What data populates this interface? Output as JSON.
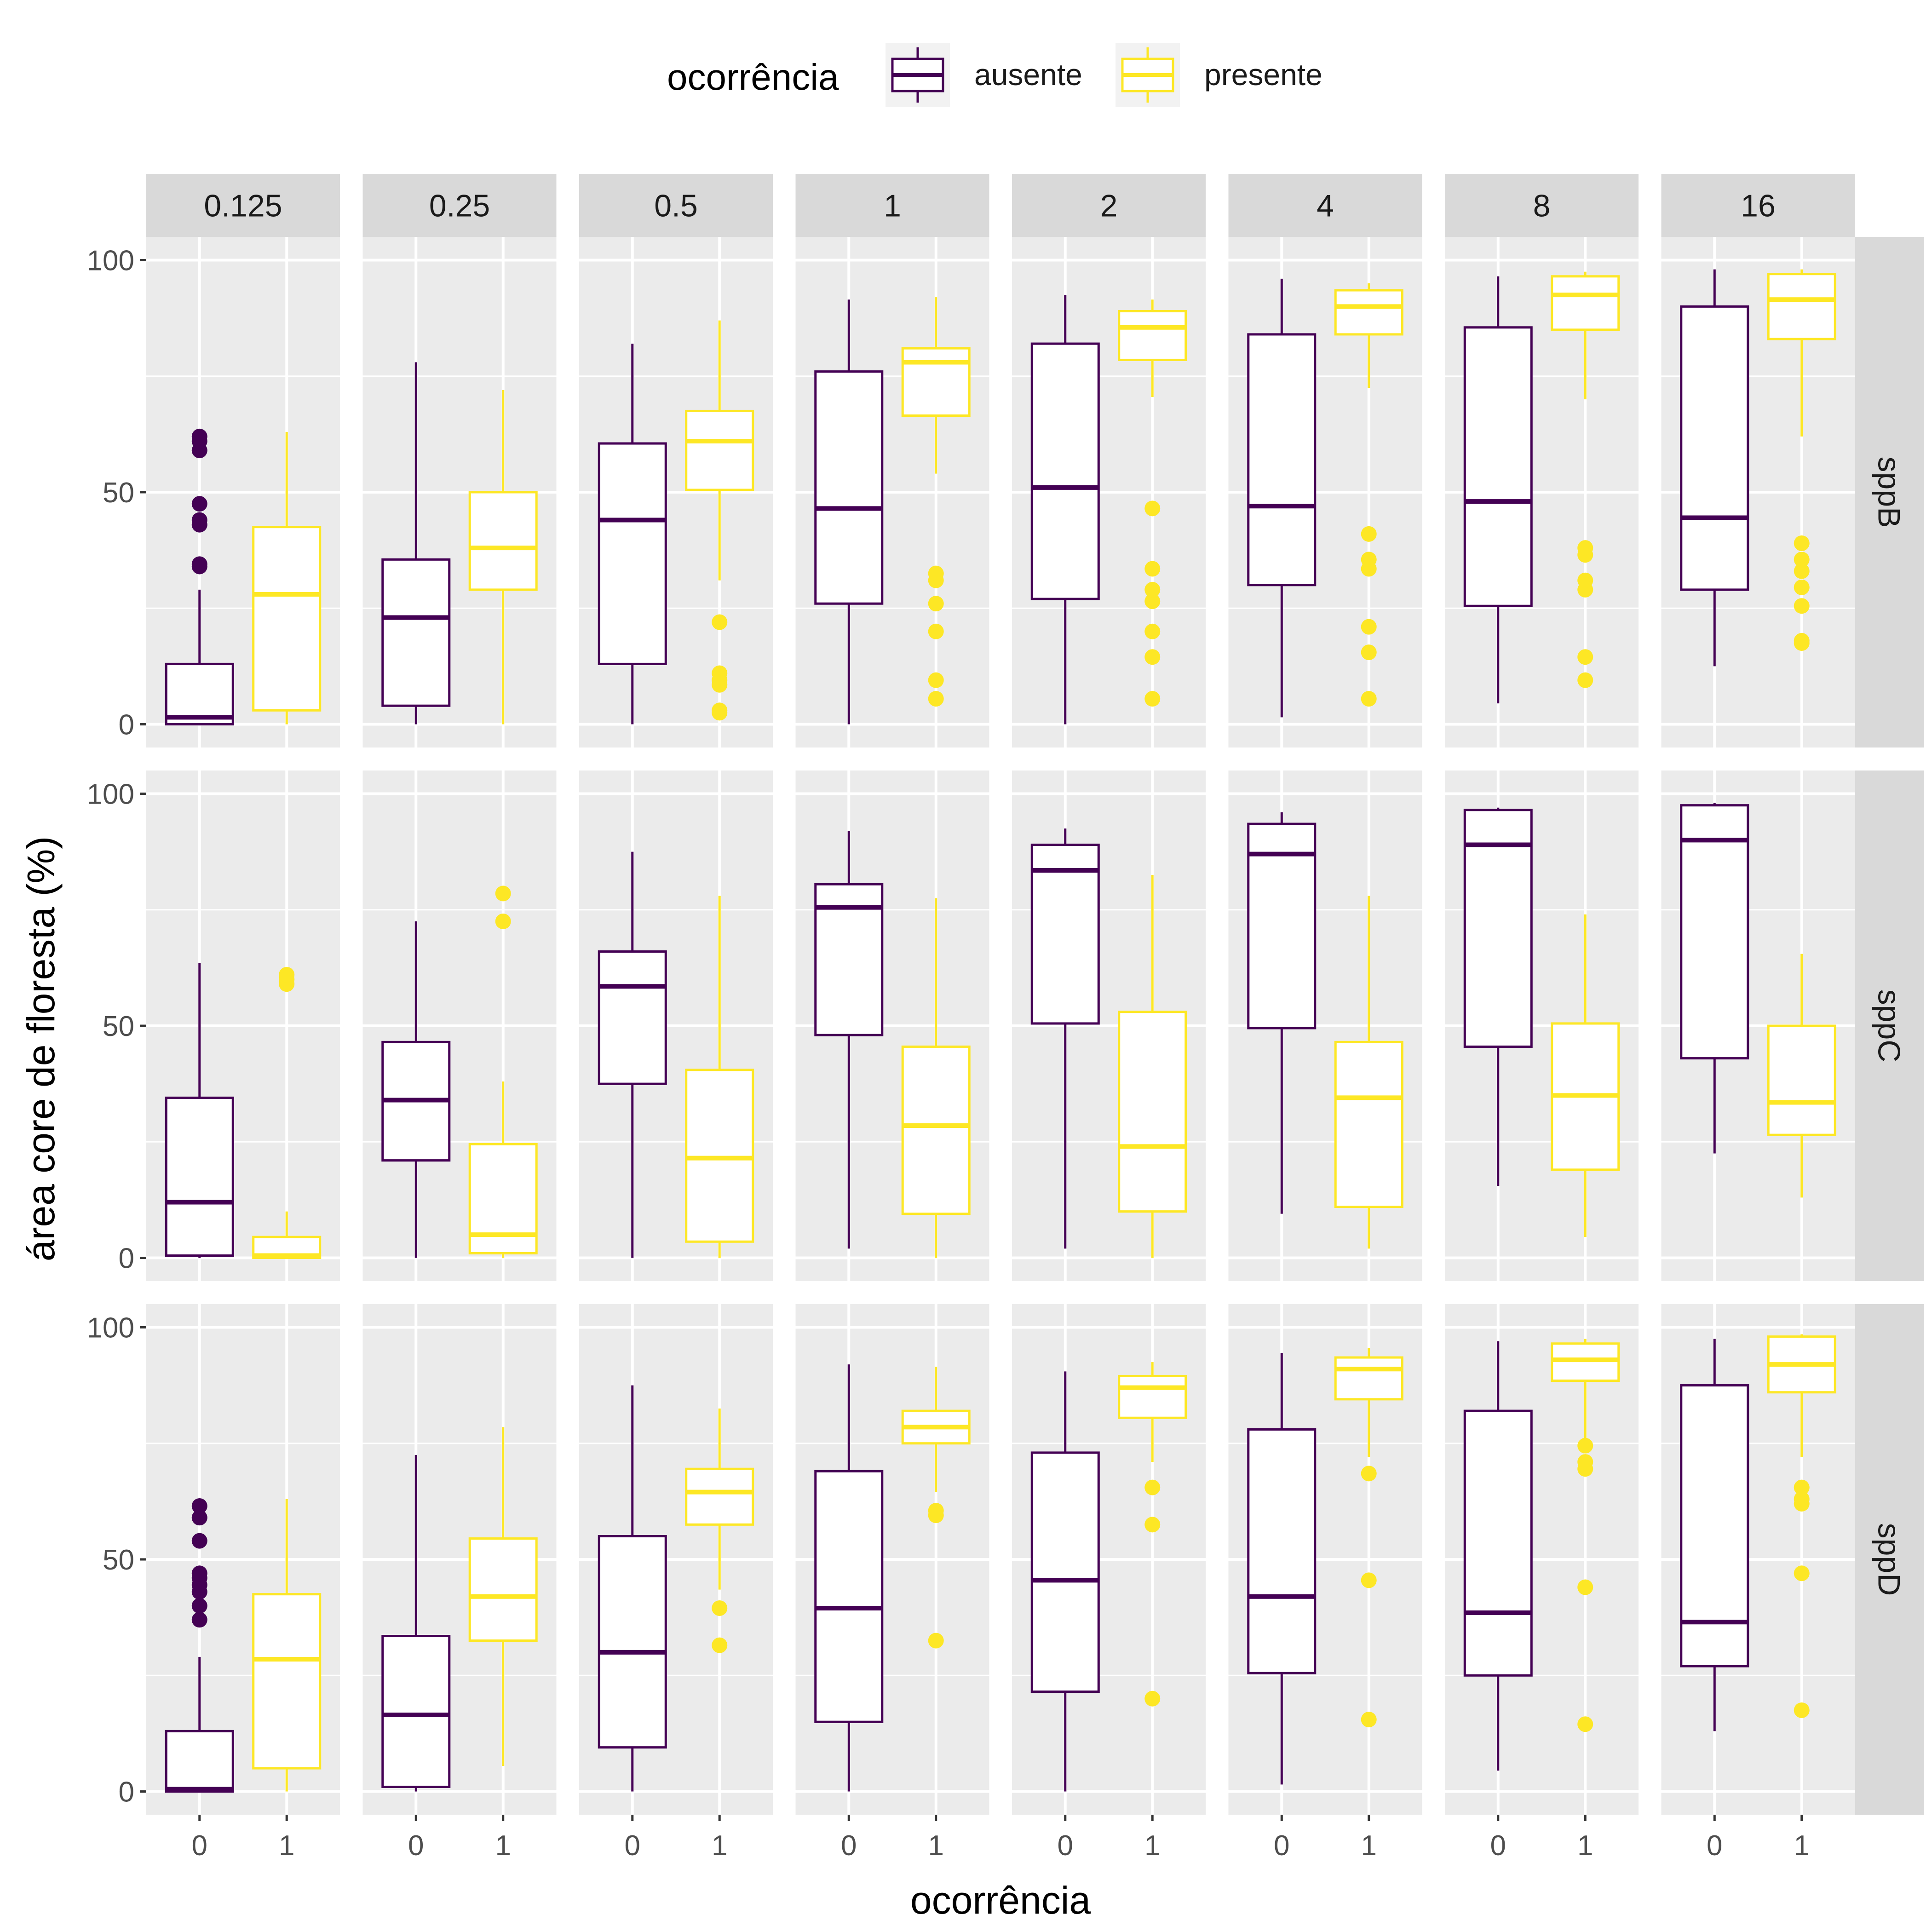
{
  "chart_data": {
    "type": "box",
    "legend": {
      "title": "ocorrência",
      "position": "top",
      "items": [
        {
          "name": "ausente",
          "color": "#440154"
        },
        {
          "name": "presente",
          "color": "#FDE725"
        }
      ]
    },
    "xlabel": "ocorrência",
    "ylabel": "área core de floresta (%)",
    "x_categories": [
      "0",
      "1"
    ],
    "ylim": [
      -5,
      105
    ],
    "y_ticks": [
      0,
      50,
      100
    ],
    "grid": true,
    "col_facets": [
      "0.125",
      "0.25",
      "0.5",
      "1",
      "2",
      "4",
      "8",
      "16"
    ],
    "row_facets": [
      "sppB",
      "sppC",
      "sppD"
    ],
    "panels": [
      [
        {
          "absent": {
            "lw": 0,
            "q1": 0,
            "med": 1.5,
            "q3": 13,
            "uw": 29,
            "out": [
              34,
              34.5,
              43,
              44,
              47.5,
              59,
              61,
              62
            ]
          },
          "present": {
            "lw": 0,
            "q1": 3,
            "med": 28,
            "q3": 42.5,
            "uw": 63,
            "out": []
          }
        },
        {
          "absent": {
            "lw": 0,
            "q1": 4,
            "med": 23,
            "q3": 35.5,
            "uw": 78,
            "out": []
          },
          "present": {
            "lw": 0,
            "q1": 29,
            "med": 38,
            "q3": 50,
            "uw": 72,
            "out": []
          }
        },
        {
          "absent": {
            "lw": 0,
            "q1": 13,
            "med": 44,
            "q3": 60.5,
            "uw": 82,
            "out": []
          },
          "present": {
            "lw": 31,
            "q1": 50.5,
            "med": 61,
            "q3": 67.5,
            "uw": 87,
            "out": [
              2.5,
              3,
              8.5,
              9.5,
              11,
              22
            ]
          }
        },
        {
          "absent": {
            "lw": 0,
            "q1": 26,
            "med": 46.5,
            "q3": 76,
            "uw": 91.5,
            "out": []
          },
          "present": {
            "lw": 54,
            "q1": 66.5,
            "med": 78,
            "q3": 81,
            "uw": 92,
            "out": [
              5.5,
              9.5,
              20,
              26,
              31,
              32.5
            ]
          }
        },
        {
          "absent": {
            "lw": 0,
            "q1": 27,
            "med": 51,
            "q3": 82,
            "uw": 92.5,
            "out": []
          },
          "present": {
            "lw": 70.5,
            "q1": 78.5,
            "med": 85.5,
            "q3": 89,
            "uw": 91.5,
            "out": [
              5.5,
              14.5,
              20,
              26.5,
              29,
              33.5,
              46.5
            ]
          }
        },
        {
          "absent": {
            "lw": 1.5,
            "q1": 30,
            "med": 47,
            "q3": 84,
            "uw": 96,
            "out": []
          },
          "present": {
            "lw": 72.5,
            "q1": 84,
            "med": 90,
            "q3": 93.5,
            "uw": 95,
            "out": [
              5.5,
              15.5,
              21,
              33.5,
              35.5,
              41
            ]
          }
        },
        {
          "absent": {
            "lw": 4.5,
            "q1": 25.5,
            "med": 48,
            "q3": 85.5,
            "uw": 96.5,
            "out": []
          },
          "present": {
            "lw": 70,
            "q1": 85,
            "med": 92.5,
            "q3": 96.5,
            "uw": 97.5,
            "out": [
              9.5,
              14.5,
              29,
              31,
              36.5,
              38
            ]
          }
        },
        {
          "absent": {
            "lw": 12.5,
            "q1": 29,
            "med": 44.5,
            "q3": 90,
            "uw": 98,
            "out": []
          },
          "present": {
            "lw": 62,
            "q1": 83,
            "med": 91.5,
            "q3": 97,
            "uw": 98,
            "out": [
              17.5,
              18,
              25.5,
              29.5,
              33,
              35.5,
              39
            ]
          }
        }
      ],
      [
        {
          "absent": {
            "lw": 0,
            "q1": 0.5,
            "med": 12,
            "q3": 34.5,
            "uw": 63.5,
            "out": []
          },
          "present": {
            "lw": 0,
            "q1": 0,
            "med": 0.5,
            "q3": 4.5,
            "uw": 10,
            "out": [
              59,
              60,
              61
            ]
          }
        },
        {
          "absent": {
            "lw": 0,
            "q1": 21,
            "med": 34,
            "q3": 46.5,
            "uw": 72.5,
            "out": []
          },
          "present": {
            "lw": 0,
            "q1": 1,
            "med": 5,
            "q3": 24.5,
            "uw": 38,
            "out": [
              72.5,
              78.5
            ]
          }
        },
        {
          "absent": {
            "lw": 0,
            "q1": 37.5,
            "med": 58.5,
            "q3": 66,
            "uw": 87.5,
            "out": []
          },
          "present": {
            "lw": 0,
            "q1": 3.5,
            "med": 21.5,
            "q3": 40.5,
            "uw": 78,
            "out": []
          }
        },
        {
          "absent": {
            "lw": 2,
            "q1": 48,
            "med": 75.5,
            "q3": 80.5,
            "uw": 92,
            "out": []
          },
          "present": {
            "lw": 0,
            "q1": 9.5,
            "med": 28.5,
            "q3": 45.5,
            "uw": 77.5,
            "out": []
          }
        },
        {
          "absent": {
            "lw": 2,
            "q1": 50.5,
            "med": 83.5,
            "q3": 89,
            "uw": 92.5,
            "out": []
          },
          "present": {
            "lw": 0,
            "q1": 10,
            "med": 24,
            "q3": 53,
            "uw": 82.5,
            "out": []
          }
        },
        {
          "absent": {
            "lw": 9.5,
            "q1": 49.5,
            "med": 87,
            "q3": 93.5,
            "uw": 96,
            "out": []
          },
          "present": {
            "lw": 2,
            "q1": 11,
            "med": 34.5,
            "q3": 46.5,
            "uw": 78,
            "out": []
          }
        },
        {
          "absent": {
            "lw": 15.5,
            "q1": 45.5,
            "med": 89,
            "q3": 96.5,
            "uw": 97,
            "out": []
          },
          "present": {
            "lw": 4.5,
            "q1": 19,
            "med": 35,
            "q3": 50.5,
            "uw": 74,
            "out": []
          }
        },
        {
          "absent": {
            "lw": 22.5,
            "q1": 43,
            "med": 90,
            "q3": 97.5,
            "uw": 98,
            "out": []
          },
          "present": {
            "lw": 13,
            "q1": 26.5,
            "med": 33.5,
            "q3": 50,
            "uw": 65.5,
            "out": []
          }
        }
      ],
      [
        {
          "absent": {
            "lw": 0,
            "q1": 0,
            "med": 0.5,
            "q3": 13,
            "uw": 29,
            "out": [
              37,
              40,
              43,
              44.5,
              46,
              47,
              54,
              59,
              61.5
            ]
          },
          "present": {
            "lw": 0,
            "q1": 5,
            "med": 28.5,
            "q3": 42.5,
            "uw": 63,
            "out": []
          }
        },
        {
          "absent": {
            "lw": 0,
            "q1": 1,
            "med": 16.5,
            "q3": 33.5,
            "uw": 72.5,
            "out": []
          },
          "present": {
            "lw": 5.5,
            "q1": 32.5,
            "med": 42,
            "q3": 54.5,
            "uw": 78.5,
            "out": []
          }
        },
        {
          "absent": {
            "lw": 0,
            "q1": 9.5,
            "med": 30,
            "q3": 55,
            "uw": 87.5,
            "out": []
          },
          "present": {
            "lw": 43.5,
            "q1": 57.5,
            "med": 64.5,
            "q3": 69.5,
            "uw": 82.5,
            "out": [
              31.5,
              39.5
            ]
          }
        },
        {
          "absent": {
            "lw": 0,
            "q1": 15,
            "med": 39.5,
            "q3": 69,
            "uw": 92,
            "out": []
          },
          "present": {
            "lw": 64.5,
            "q1": 75,
            "med": 78.5,
            "q3": 82,
            "uw": 91.5,
            "out": [
              32.5,
              59.5,
              60.5
            ]
          }
        },
        {
          "absent": {
            "lw": 0,
            "q1": 21.5,
            "med": 45.5,
            "q3": 73,
            "uw": 90.5,
            "out": []
          },
          "present": {
            "lw": 71,
            "q1": 80.5,
            "med": 87,
            "q3": 89.5,
            "uw": 92.5,
            "out": [
              20,
              57.5,
              65.5
            ]
          }
        },
        {
          "absent": {
            "lw": 1.5,
            "q1": 25.5,
            "med": 42,
            "q3": 78,
            "uw": 94.5,
            "out": []
          },
          "present": {
            "lw": 72,
            "q1": 84.5,
            "med": 91,
            "q3": 93.5,
            "uw": 95.5,
            "out": [
              15.5,
              45.5,
              68.5
            ]
          }
        },
        {
          "absent": {
            "lw": 4.5,
            "q1": 25,
            "med": 38.5,
            "q3": 82,
            "uw": 97,
            "out": []
          },
          "present": {
            "lw": 75,
            "q1": 88.5,
            "med": 93,
            "q3": 96.5,
            "uw": 97.5,
            "out": [
              14.5,
              44,
              69.5,
              71,
              74.5
            ]
          }
        },
        {
          "absent": {
            "lw": 13,
            "q1": 27,
            "med": 36.5,
            "q3": 87.5,
            "uw": 97.5,
            "out": []
          },
          "present": {
            "lw": 72,
            "q1": 86,
            "med": 92,
            "q3": 98,
            "uw": 98.5,
            "out": [
              17.5,
              47,
              62,
              63,
              65.5
            ]
          }
        }
      ]
    ]
  }
}
